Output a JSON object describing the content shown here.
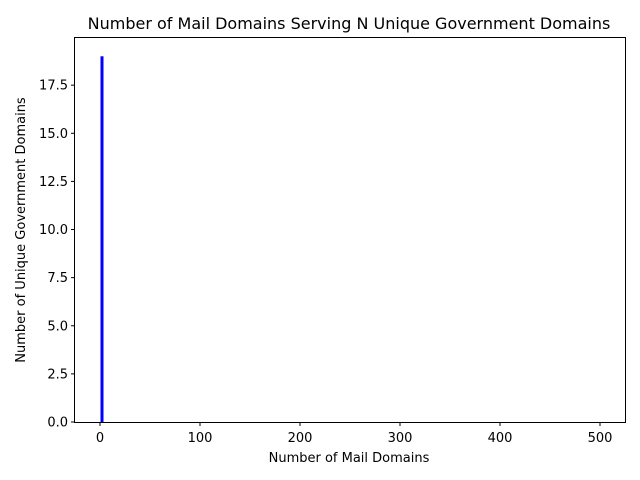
{
  "chart_data": {
    "type": "bar",
    "title": "Number of Mail Domains Serving N Unique Government Domains",
    "xlabel": "Number of Mail Domains",
    "ylabel": "Number of Unique Government Domains",
    "xlim": [
      -25,
      525
    ],
    "ylim": [
      0,
      19.95
    ],
    "xticks": [
      0,
      100,
      200,
      300,
      400,
      500
    ],
    "xtick_labels": [
      "0",
      "100",
      "200",
      "300",
      "400",
      "500"
    ],
    "yticks": [
      0.0,
      2.5,
      5.0,
      7.5,
      10.0,
      12.5,
      15.0,
      17.5
    ],
    "ytick_labels": [
      "0.0",
      "2.5",
      "5.0",
      "7.5",
      "10.0",
      "12.5",
      "15.0",
      "17.5"
    ],
    "bar_color": "#0000ff",
    "grid": false,
    "x": [
      1,
      2,
      3
    ],
    "values": [
      19,
      19,
      19
    ]
  }
}
